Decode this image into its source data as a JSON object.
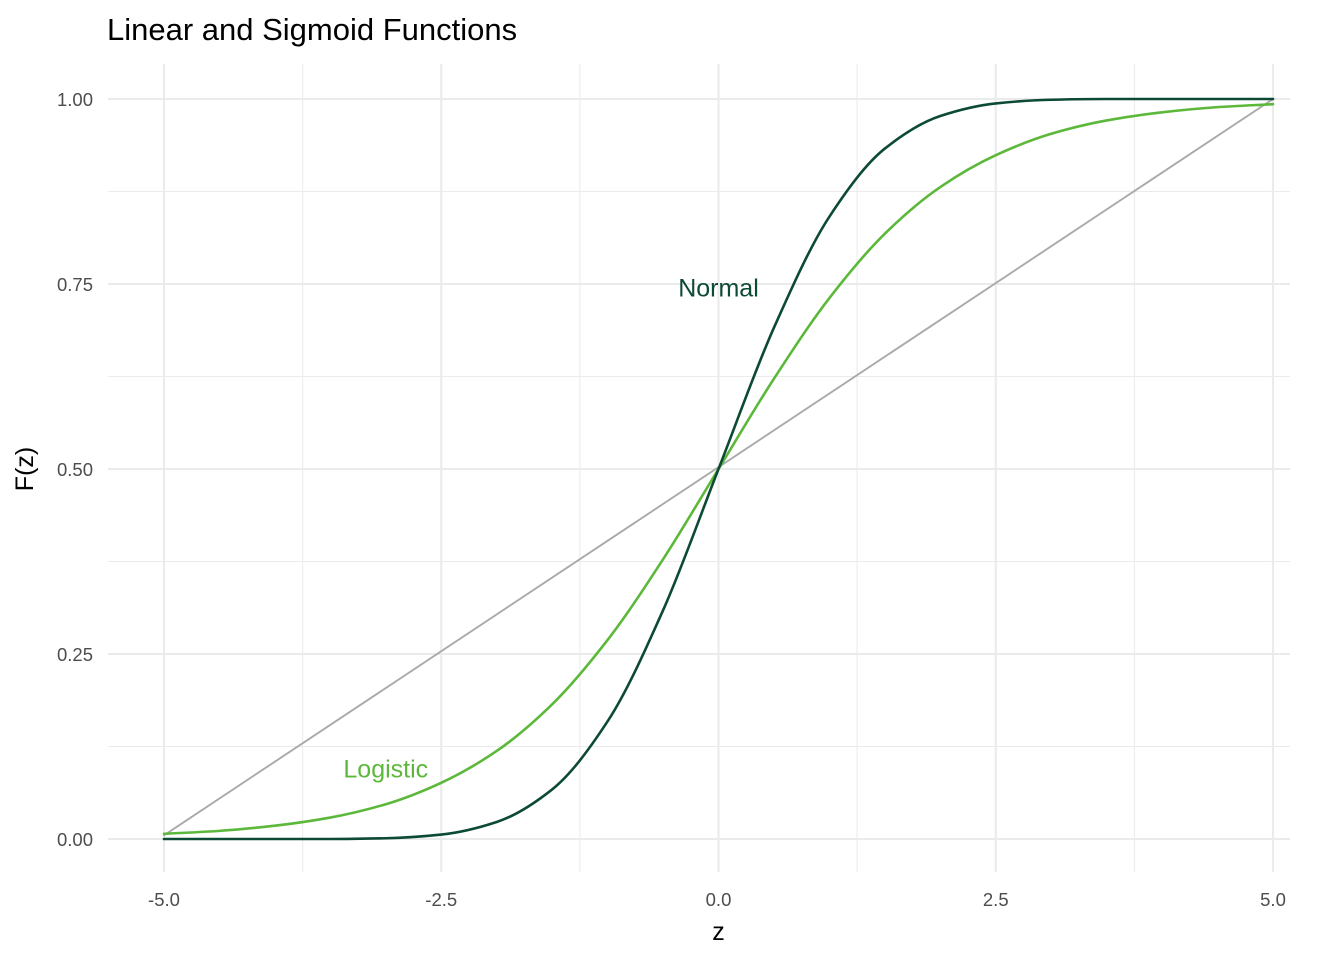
{
  "chart_data": {
    "type": "line",
    "title": "Linear and Sigmoid Functions",
    "xlabel": "z",
    "ylabel": "F(z)",
    "xlim": [
      -5,
      5
    ],
    "ylim": [
      0,
      1
    ],
    "x_ticks": [
      -5,
      -2.5,
      0,
      2.5,
      5
    ],
    "x_tick_labels": [
      "-5.0",
      "-2.5",
      "0.0",
      "2.5",
      "5.0"
    ],
    "y_ticks": [
      0,
      0.25,
      0.5,
      0.75,
      1
    ],
    "y_tick_labels": [
      "0.00",
      "0.25",
      "0.50",
      "0.75",
      "1.00"
    ],
    "grid": true,
    "legend": "none",
    "x": [
      -5,
      -4.5,
      -4,
      -3.5,
      -3,
      -2.5,
      -2,
      -1.5,
      -1,
      -0.5,
      0,
      0.5,
      1,
      1.5,
      2,
      2.5,
      3,
      3.5,
      4,
      4.5,
      5
    ],
    "series": [
      {
        "color": "#aaaaaa",
        "values": [
          0.005,
          0.054,
          0.104,
          0.154,
          0.204,
          0.254,
          0.303,
          0.353,
          0.403,
          0.453,
          0.5,
          0.552,
          0.602,
          0.652,
          0.701,
          0.751,
          0.801,
          0.851,
          0.9,
          0.95,
          1.0
        ]
      },
      {
        "name": "Logistic",
        "color": "#5cb83a",
        "values": [
          0.007,
          0.011,
          0.018,
          0.029,
          0.047,
          0.076,
          0.119,
          0.182,
          0.269,
          0.378,
          0.5,
          0.622,
          0.731,
          0.818,
          0.881,
          0.924,
          0.953,
          0.971,
          0.982,
          0.989,
          0.993
        ]
      },
      {
        "name": "Normal",
        "color": "#0d4a36",
        "values": [
          0.0,
          0.0,
          0.0,
          0.0,
          0.001,
          0.006,
          0.023,
          0.067,
          0.159,
          0.309,
          0.5,
          0.691,
          0.841,
          0.933,
          0.977,
          0.994,
          0.999,
          1.0,
          1.0,
          1.0,
          1.0
        ]
      }
    ],
    "annotations": [
      {
        "text": "Normal",
        "x": 0.0,
        "y": 0.745,
        "color": "#0d4a36"
      },
      {
        "text": "Logistic",
        "x": -3.0,
        "y": 0.095,
        "color": "#5cb83a"
      }
    ]
  }
}
